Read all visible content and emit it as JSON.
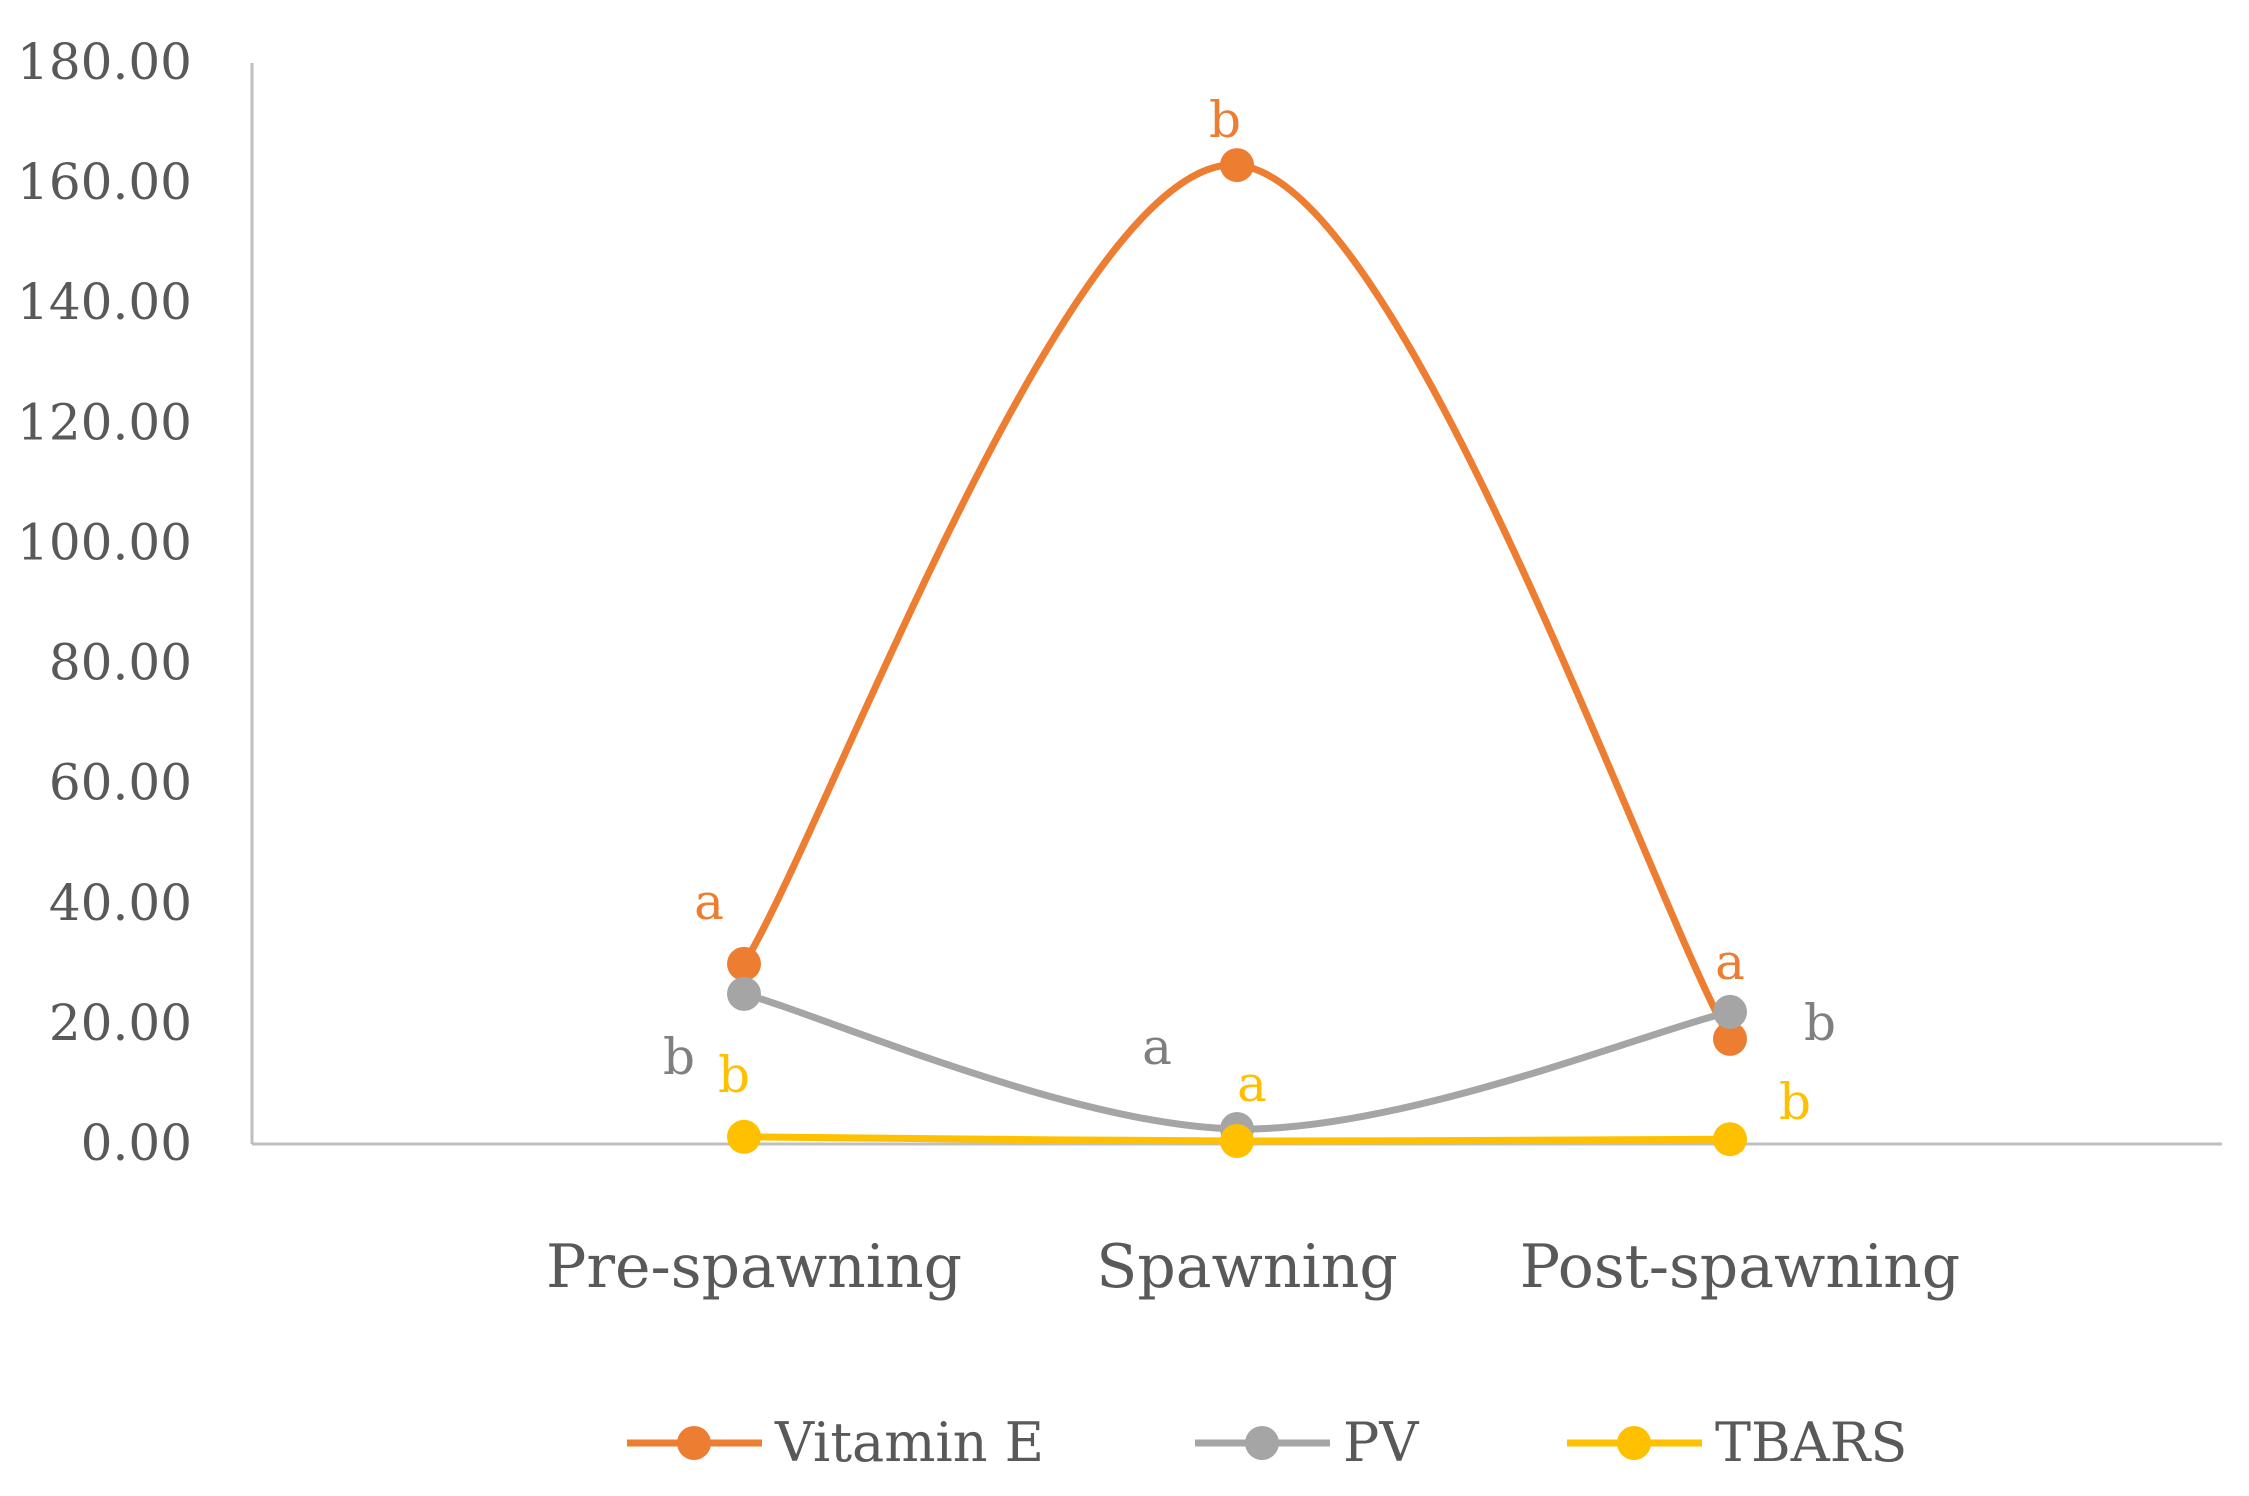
{
  "chart_data": {
    "type": "line",
    "smooth": true,
    "title": "",
    "xlabel": "",
    "ylabel": "",
    "ylim": [
      0,
      180
    ],
    "y_ticks": [
      0,
      20,
      40,
      60,
      80,
      100,
      120,
      140,
      160,
      180
    ],
    "y_tick_labels": [
      "0.00",
      "20.00",
      "40.00",
      "60.00",
      "80.00",
      "100.00",
      "120.00",
      "140.00",
      "160.00",
      "180.00"
    ],
    "categories": [
      "Pre-spawning",
      "Spawning",
      "Post-spawning"
    ],
    "grid": false,
    "legend_position": "bottom",
    "series": [
      {
        "name": "Vitamin E",
        "color": "#ED7D31",
        "values": [
          30,
          163,
          17.5
        ],
        "point_labels": [
          "a",
          "b",
          "a"
        ]
      },
      {
        "name": "PV",
        "color": "#A5A5A5",
        "values": [
          25,
          2.5,
          22
        ],
        "point_labels": [
          "b",
          "a",
          "b"
        ]
      },
      {
        "name": "TBARS",
        "color": "#FFC000",
        "values": [
          1.2,
          0.5,
          0.8
        ],
        "point_labels": [
          "b",
          "a",
          "b"
        ]
      }
    ],
    "axis_color": "#BFBFBF",
    "text_color": "#595959"
  }
}
